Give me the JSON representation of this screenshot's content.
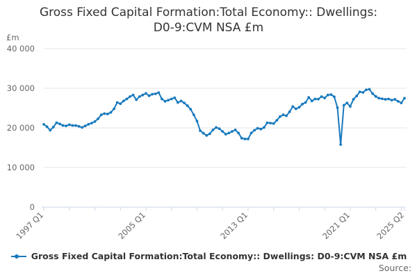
{
  "title": {
    "line1": "Gross Fixed Capital Formation:Total Economy:: Dwellings:",
    "line2": "D0-9:CVM NSA £m"
  },
  "y_axis": {
    "unit": "£m",
    "ticks": [
      {
        "value": 0,
        "label": "0"
      },
      {
        "value": 10000,
        "label": "10 000"
      },
      {
        "value": 20000,
        "label": "20 000"
      },
      {
        "value": 30000,
        "label": "30 000"
      },
      {
        "value": 40000,
        "label": "40 000"
      }
    ]
  },
  "legend": {
    "label": "Gross Fixed Capital Formation:Total Economy:: Dwellings: D0-9:CVM NSA £m"
  },
  "footer": {
    "source_label": "Source:"
  },
  "colors": {
    "series": "#1879bd",
    "gridline": "#e6e6e6",
    "axis": "#ccd6eb",
    "axis_label": "#666666",
    "title_text": "#333333"
  },
  "chart_data": {
    "type": "line",
    "title": "Gross Fixed Capital Formation:Total Economy:: Dwellings: D0-9:CVM NSA £m",
    "ylabel": "£m",
    "ylim": [
      0,
      40000
    ],
    "y_ticks": [
      0,
      10000,
      20000,
      30000,
      40000
    ],
    "x_start": "1997 Q1",
    "x_end": "2025 Q2",
    "x_frequency": "quarterly",
    "x_minor_tick_every": 8,
    "x_tick_labels": [
      {
        "index": 0,
        "label": "1997 Q1"
      },
      {
        "index": 32,
        "label": "2005 Q1"
      },
      {
        "index": 64,
        "label": "2013 Q1"
      },
      {
        "index": 96,
        "label": "2021 Q1"
      },
      {
        "index": 113,
        "label": "2025 Q2"
      }
    ],
    "grid": true,
    "legend_position": "bottom",
    "values": [
      20900,
      20300,
      19400,
      20200,
      21300,
      21000,
      20600,
      20500,
      20800,
      20600,
      20600,
      20400,
      20100,
      20500,
      20900,
      21200,
      21600,
      22300,
      23300,
      23600,
      23500,
      23900,
      24800,
      26400,
      26100,
      26800,
      27300,
      27900,
      28300,
      27100,
      27900,
      28300,
      28700,
      28100,
      28500,
      28600,
      28900,
      27300,
      26700,
      27000,
      27300,
      27600,
      26400,
      26800,
      26300,
      25600,
      24700,
      23300,
      21700,
      19300,
      18650,
      18100,
      18500,
      19500,
      20100,
      19800,
      19100,
      18400,
      18700,
      19100,
      19500,
      18700,
      17400,
      17200,
      17200,
      18700,
      19400,
      19900,
      19700,
      20100,
      21300,
      21200,
      21100,
      21900,
      22850,
      23300,
      23050,
      24050,
      25400,
      24800,
      25200,
      26000,
      26400,
      27700,
      26800,
      27300,
      27250,
      27900,
      27550,
      28300,
      28400,
      27850,
      25100,
      15800,
      25700,
      26300,
      25400,
      27200,
      28050,
      29100,
      28950,
      29600,
      29750,
      28650,
      27950,
      27500,
      27350,
      27200,
      27300,
      27000,
      27200,
      26700,
      26300,
      27500
    ]
  }
}
